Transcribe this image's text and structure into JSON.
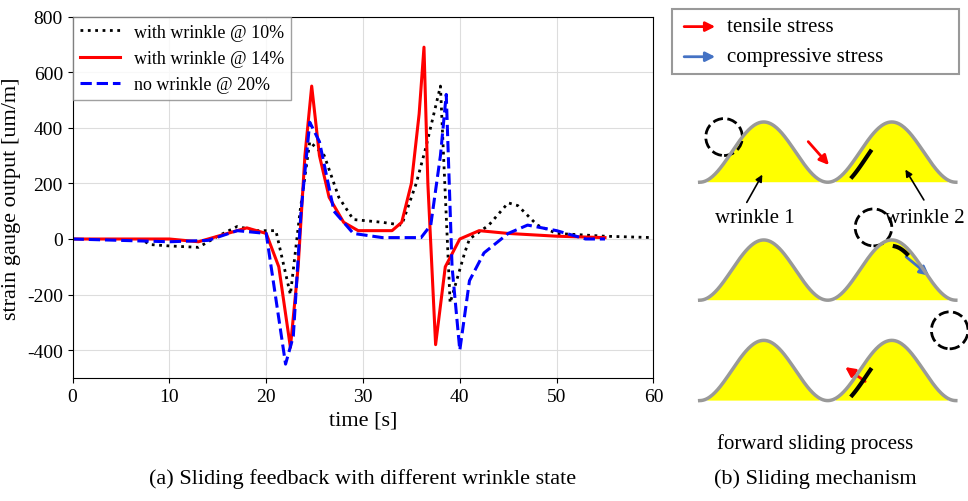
{
  "chart_data": {
    "type": "line",
    "x_label": "time [s]",
    "y_label": "strain gauge output [um/m]",
    "caption": "(a) Sliding feedback with different wrinkle state",
    "xlim": [
      0,
      60
    ],
    "xticks": [
      0,
      10,
      20,
      30,
      40,
      50,
      60
    ],
    "ylim": [
      -500,
      800
    ],
    "yticks": [
      -400,
      -200,
      0,
      200,
      400,
      600,
      800
    ],
    "grid": true,
    "legend": "upper left",
    "series": [
      {
        "name": "with wrinkle @ 10%",
        "color": "#000000",
        "line_style": "dotted",
        "x": [
          7.5,
          8,
          10,
          13,
          15,
          17,
          19,
          21,
          22.5,
          23.5,
          24.5,
          26,
          27.5,
          29,
          32,
          34,
          35.5,
          36.5,
          38,
          39,
          40.5,
          41,
          43,
          45,
          46,
          48,
          50,
          55,
          60
        ],
        "values": [
          -10,
          -20,
          -25,
          -30,
          10,
          45,
          30,
          30,
          -200,
          100,
          350,
          300,
          150,
          70,
          60,
          50,
          200,
          330,
          550,
          -230,
          -50,
          0,
          50,
          130,
          120,
          50,
          20,
          10,
          5
        ]
      },
      {
        "name": "with wrinkle @ 14%",
        "color": "#ff0000",
        "line_style": "solid",
        "x": [
          0,
          10,
          13,
          16,
          18,
          20,
          21.3,
          22.5,
          23.3,
          24,
          24.7,
          25.5,
          26.5,
          28,
          29.5,
          33,
          34,
          35,
          35.8,
          36.3,
          36.7,
          37.5,
          38.5,
          40,
          42,
          45,
          50,
          55
        ],
        "values": [
          0,
          0,
          -10,
          20,
          40,
          20,
          -100,
          -390,
          -100,
          300,
          550,
          300,
          150,
          60,
          30,
          30,
          60,
          200,
          450,
          690,
          200,
          -380,
          -100,
          0,
          30,
          20,
          10,
          5
        ]
      },
      {
        "name": "no wrinkle @ 20%",
        "color": "#0000ff",
        "line_style": "dashed",
        "x": [
          0,
          10,
          14,
          17,
          20,
          22,
          22.8,
          23.6,
          24.5,
          25.5,
          27,
          29,
          32,
          36,
          37,
          38,
          38.6,
          39.2,
          40,
          41,
          42.5,
          45,
          47,
          50,
          53,
          55
        ],
        "values": [
          0,
          -10,
          -5,
          30,
          20,
          -450,
          -350,
          100,
          420,
          350,
          100,
          20,
          5,
          5,
          50,
          300,
          520,
          -100,
          -400,
          -150,
          -50,
          20,
          50,
          30,
          0,
          0
        ]
      }
    ]
  },
  "diagram": {
    "legend": [
      {
        "label": "tensile stress",
        "color": "#ff0000"
      },
      {
        "label": "compressive stress",
        "color": "#4472c4"
      }
    ],
    "labels": [
      "wrinkle 1",
      "wrinkle 2"
    ],
    "process_label": "forward sliding process",
    "caption": "(b) Sliding mechanism"
  }
}
